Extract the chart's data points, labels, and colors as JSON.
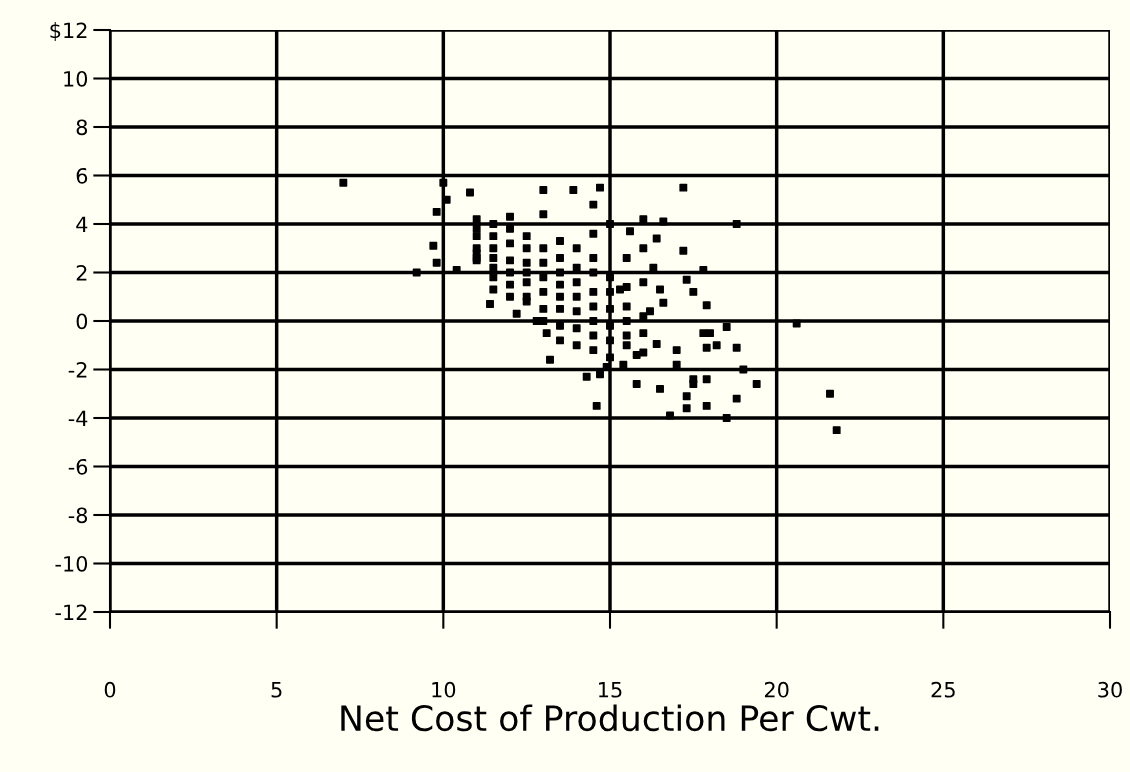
{
  "chart_data": {
    "type": "scatter",
    "xlabel": "Net Cost of Production Per Cwt.",
    "xlim": [
      0,
      30
    ],
    "ylim": [
      -12,
      12
    ],
    "xticks": [
      0,
      5,
      10,
      15,
      20,
      25,
      30
    ],
    "yticks": [
      {
        "value": 12,
        "label": "$12"
      },
      10,
      8,
      6,
      4,
      2,
      0,
      -2,
      -4,
      -6,
      -8,
      -10,
      -12
    ],
    "grid": true,
    "marker": "square",
    "legend": false,
    "series": [
      {
        "color": "#000000",
        "x": [
          7.0,
          10.0,
          14.7,
          13.9,
          13.0,
          17.2,
          10.8,
          18.8,
          9.2,
          9.7,
          9.8,
          9.8,
          10.1,
          20.6,
          21.6,
          21.8,
          18.5,
          16.8,
          17.3,
          17.3,
          17.5,
          17.5,
          17.9,
          17.9,
          18.8,
          19.4,
          19.0,
          18.8,
          18.2,
          17.9,
          18.0,
          17.8,
          18.5,
          17.9,
          17.8,
          16.5,
          17.5,
          17.3,
          16.6,
          16.2,
          17.2,
          16.4,
          16.6,
          16.0,
          14.6,
          14.7,
          14.9,
          15.8,
          16.5,
          17.0,
          17.0,
          16.4,
          15.8,
          15.4,
          13.2,
          14.3,
          13.1,
          12.8,
          12.2,
          11.4,
          11.5,
          11.0,
          10.4,
          11.0,
          11.0,
          11.0,
          11.0,
          11.0,
          11.0,
          11.5,
          11.5,
          11.5,
          11.5,
          11.5,
          11.5,
          12.0,
          12.0,
          12.0,
          12.0,
          12.0,
          12.0,
          12.0,
          12.5,
          12.5,
          12.5,
          12.5,
          12.5,
          12.5,
          12.5,
          13.0,
          13.0,
          13.0,
          13.0,
          13.0,
          13.0,
          13.0,
          13.5,
          13.5,
          13.5,
          13.5,
          13.5,
          13.5,
          13.5,
          13.5,
          14.0,
          14.0,
          14.0,
          14.0,
          14.0,
          14.0,
          14.0,
          14.5,
          14.5,
          14.5,
          14.5,
          14.5,
          14.5,
          14.5,
          14.5,
          14.5,
          15.0,
          15.0,
          15.0,
          15.0,
          15.0,
          15.0,
          15.0,
          15.5,
          15.5,
          15.5,
          15.5,
          15.5,
          15.5,
          16.0,
          16.0,
          16.0,
          16.0,
          16.0,
          15.6,
          16.3,
          15.3
        ],
        "values": [
          5.7,
          5.7,
          5.5,
          5.4,
          5.4,
          5.5,
          5.3,
          4.0,
          2.0,
          3.1,
          2.4,
          4.5,
          5.0,
          -0.1,
          -3.0,
          -4.5,
          -4.0,
          -3.9,
          -3.6,
          -3.1,
          -2.6,
          -2.4,
          -2.4,
          -3.5,
          -3.2,
          -2.6,
          -2.0,
          -1.1,
          -1.0,
          -1.1,
          -0.5,
          -0.5,
          -0.25,
          0.65,
          2.1,
          1.3,
          1.2,
          1.7,
          0.75,
          0.4,
          2.9,
          3.4,
          4.1,
          4.2,
          -3.5,
          -2.2,
          -1.9,
          -2.6,
          -2.8,
          -1.8,
          -1.2,
          -0.95,
          -1.4,
          -1.8,
          -1.6,
          -2.3,
          -0.5,
          0.0,
          0.3,
          0.7,
          1.3,
          2.6,
          2.1,
          3.5,
          3.0,
          2.5,
          2.8,
          3.8,
          4.2,
          3.0,
          2.2,
          4.0,
          3.5,
          1.8,
          2.6,
          3.8,
          3.2,
          2.5,
          2.0,
          1.5,
          1.0,
          4.3,
          3.0,
          2.4,
          2.0,
          1.6,
          1.0,
          0.8,
          3.5,
          4.4,
          3.0,
          2.4,
          1.8,
          1.2,
          0.5,
          0.0,
          3.3,
          2.6,
          2.0,
          1.5,
          1.0,
          0.5,
          -0.2,
          -0.8,
          3.0,
          2.2,
          1.6,
          1.0,
          0.4,
          -0.3,
          -1.0,
          2.6,
          2.0,
          1.2,
          0.6,
          0.0,
          -0.6,
          -1.2,
          3.6,
          4.8,
          1.8,
          1.2,
          0.5,
          -0.2,
          -0.8,
          -1.5,
          4.0,
          1.4,
          0.6,
          0.0,
          -0.6,
          -1.0,
          2.6,
          1.6,
          0.2,
          -0.5,
          -1.3,
          3.0,
          3.7,
          2.2,
          1.3
        ]
      }
    ]
  }
}
